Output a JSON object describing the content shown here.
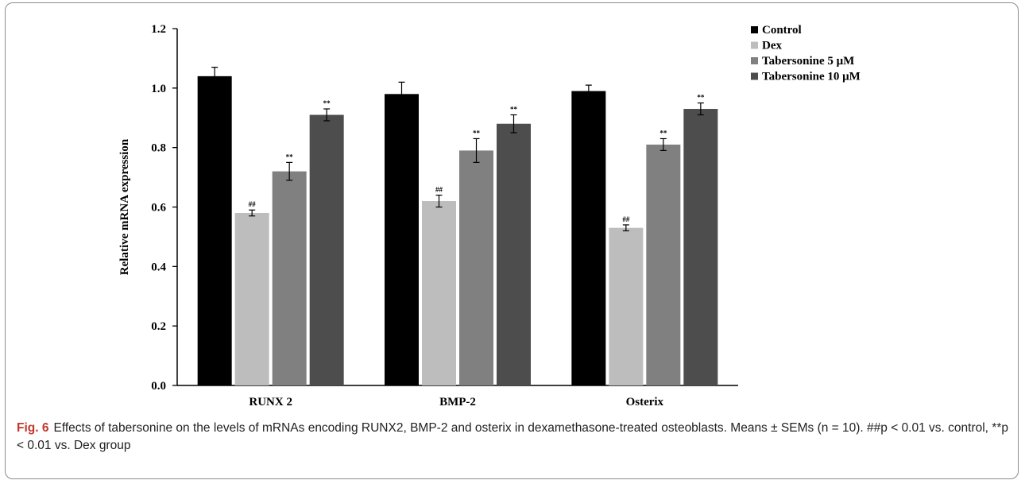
{
  "chart_data": {
    "type": "bar",
    "title": "",
    "xlabel": "",
    "ylabel": "Relative mRNA expression",
    "ylim": [
      0,
      1.2
    ],
    "yticks": [
      "0.0",
      "0.2",
      "0.4",
      "0.6",
      "0.8",
      "1.0",
      "1.2"
    ],
    "categories": [
      "RUNX 2",
      "BMP-2",
      "Osterix"
    ],
    "series": [
      {
        "name": "Control",
        "color": "#000000",
        "values": [
          1.04,
          0.98,
          0.99
        ],
        "errors": [
          0.03,
          0.04,
          0.02
        ],
        "annotations": [
          "",
          "",
          ""
        ]
      },
      {
        "name": "Dex",
        "color": "#bdbdbd",
        "values": [
          0.58,
          0.62,
          0.53
        ],
        "errors": [
          0.01,
          0.02,
          0.01
        ],
        "annotations": [
          "##",
          "##",
          "##"
        ]
      },
      {
        "name": "Tabersonine 5 μM",
        "color": "#808080",
        "values": [
          0.72,
          0.79,
          0.81
        ],
        "errors": [
          0.03,
          0.04,
          0.02
        ],
        "annotations": [
          "**",
          "**",
          "**"
        ]
      },
      {
        "name": "Tabersonine 10 μM",
        "color": "#4d4d4d",
        "values": [
          0.91,
          0.88,
          0.93
        ],
        "errors": [
          0.02,
          0.03,
          0.02
        ],
        "annotations": [
          "**",
          "**",
          "**"
        ]
      }
    ],
    "grid": false,
    "legend_position": "top-right"
  },
  "caption": {
    "label": "Fig. 6",
    "text": "Effects of tabersonine on the levels of mRNAs encoding RUNX2, BMP-2 and osterix in dexamethasone-treated osteoblasts. Means ± SEMs (n = 10). ##p < 0.01 vs. control, **p < 0.01 vs. Dex group"
  }
}
